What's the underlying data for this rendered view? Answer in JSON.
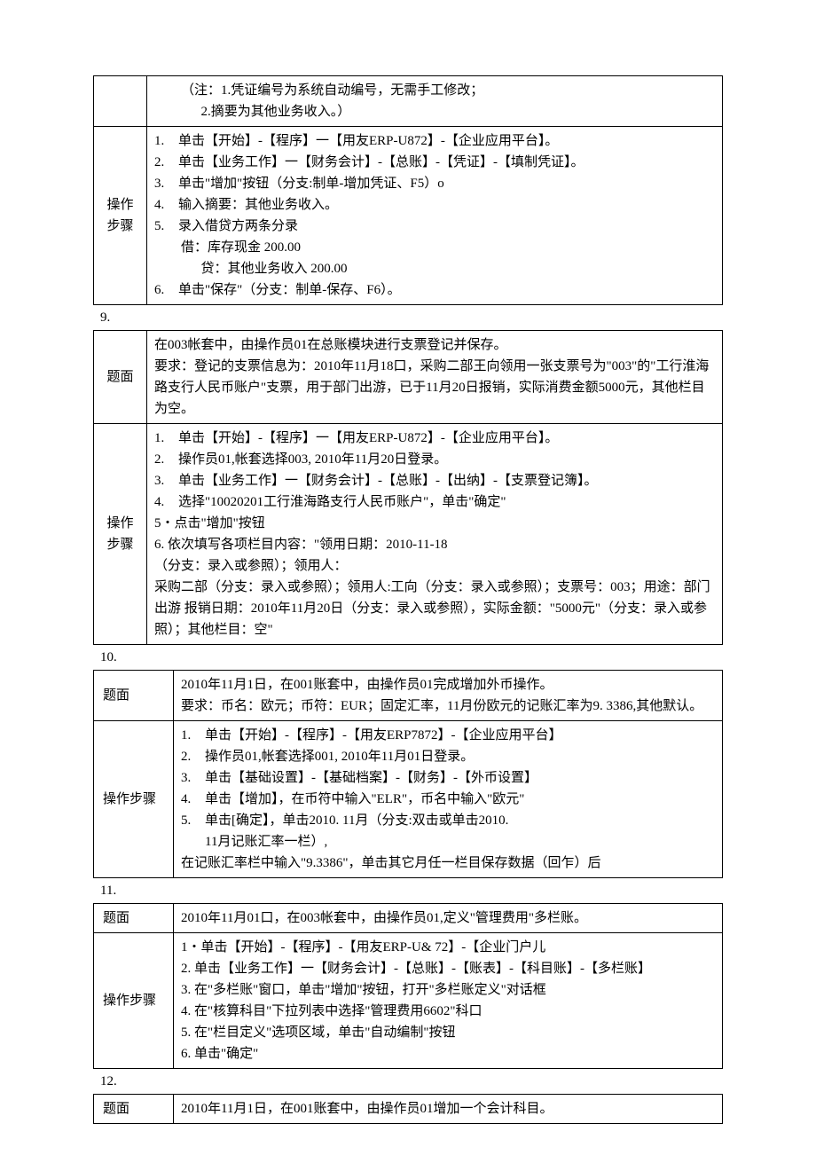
{
  "section8": {
    "note1": "（注：1.凭证编号为系统自动编号，无需手工修改；",
    "note2": "2.摘要为其他业务收入。）",
    "label_steps": "操作步骤",
    "steps": [
      "单击【开始】-【程序】一【用友ERP-U872】-【企业应用平台】。",
      "单击【业务工作】一【财务会计】-【总账】-【凭证】-【填制凭证】。",
      "单击\"增加\"按钮（分支:制单-增加凭证、F5）o",
      "输入摘要：其他业务收入。",
      "录入借贷方两条分录",
      "单击\"保存\"（分支：制单-保存、F6）。"
    ],
    "debit": "借：库存现金          200.00",
    "credit": "贷：其他业务收入     200.00"
  },
  "section9": {
    "num": "9.",
    "label_q": "题面",
    "q1": "在003帐套中，由操作员01在总账模块进行支票登记并保存。",
    "q2": "要求：登记的支票信息为：2010年11月18口，采购二部王向领用一张支票号为\"003\"的\"工行淮海路支行人民币账户\"支票，用于部门出游，已于11月20日报销，实际消费金额5000元，其他栏目为空。",
    "label_steps": "操作步骤",
    "steps_num": [
      "单击【开始】-【程序】一【用友ERP-U872】-【企业应用平台】。",
      "操作员01,帐套选择003, 2010年11月20日登录。",
      "单击【业务工作】一【财务会计】-【总账】-【出纳】-【支票登记簿】。",
      "选择\"10020201工行淮海路支行人民币账户\"，单击\"确定\""
    ],
    "step5": "5・点击\"增加\"按钮",
    "step6": "6. 依次填写各项栏目内容：\"领用日期：2010-11-18",
    "step_extra1": "（分支：录入或参照）；领用人：",
    "step_extra2": "采购二部（分支：录入或参照）；领用人:工向（分支：录入或参照）；支票号：003；用途：部门出游 报销日期：2010年11月20日（分支：录入或参照），实际金额：\"5000元\"（分支：录入或参照）；其他栏目：空\""
  },
  "section10": {
    "num": "10.",
    "label_q": "题面",
    "q1": "2010年11月1日，在001账套中，由操作员01完成增加外币操作。",
    "q2": "要求：币名：欧元；币符：EUR；固定汇率，11月份欧元的记账汇率为9. 3386,其他默认。",
    "label_steps": "操作步骤",
    "steps": [
      "单击【开始】-【程序】-【用友ERP7872】-【企业应用平台】",
      "操作员01,帐套选择001, 2010年11月01日登录。",
      "单击【基础设置】-【基础档案】-【财务】-【外币设置】",
      "单击【增加】，在币符中输入\"ELR\"，币名中输入\"欧元\"",
      "单击[确定】，单击2010. 11月（分支:双击或单击2010."
    ],
    "step5_cont": "11月记账汇率一栏）,",
    "step_extra": "在记账汇率栏中输入\"9.3386\"，单击其它月任一栏目保存数据（回乍）后"
  },
  "section11": {
    "num": "11.",
    "label_q": "题面",
    "q": "2010年11月01口，在003帐套中，由操作员01,定义\"管理费用\"多栏账。",
    "label_steps": "操作步骤",
    "s1": "1・单击【开始】-【程序】-【用友ERP-U& 72】-【企业门户儿",
    "s2": "2. 单击【业务工作】一【财务会计】-【总账】-【账表】-【科目账】-【多栏账】",
    "s3": "3. 在\"多栏账\"窗口，单击\"增加\"按钮，打开\"多栏账定义\"对话框",
    "s4": "4. 在\"核算科目\"下拉列表中选择\"管理费用6602\"科口",
    "s5": "5. 在\"栏目定义\"选项区域，单击\"自动编制\"按钮",
    "s6": "6. 单击\"确定\""
  },
  "section12": {
    "num": "12.",
    "label_q": "题面",
    "q": "2010年11月1日，在001账套中，由操作员01增加一个会计科目。"
  }
}
